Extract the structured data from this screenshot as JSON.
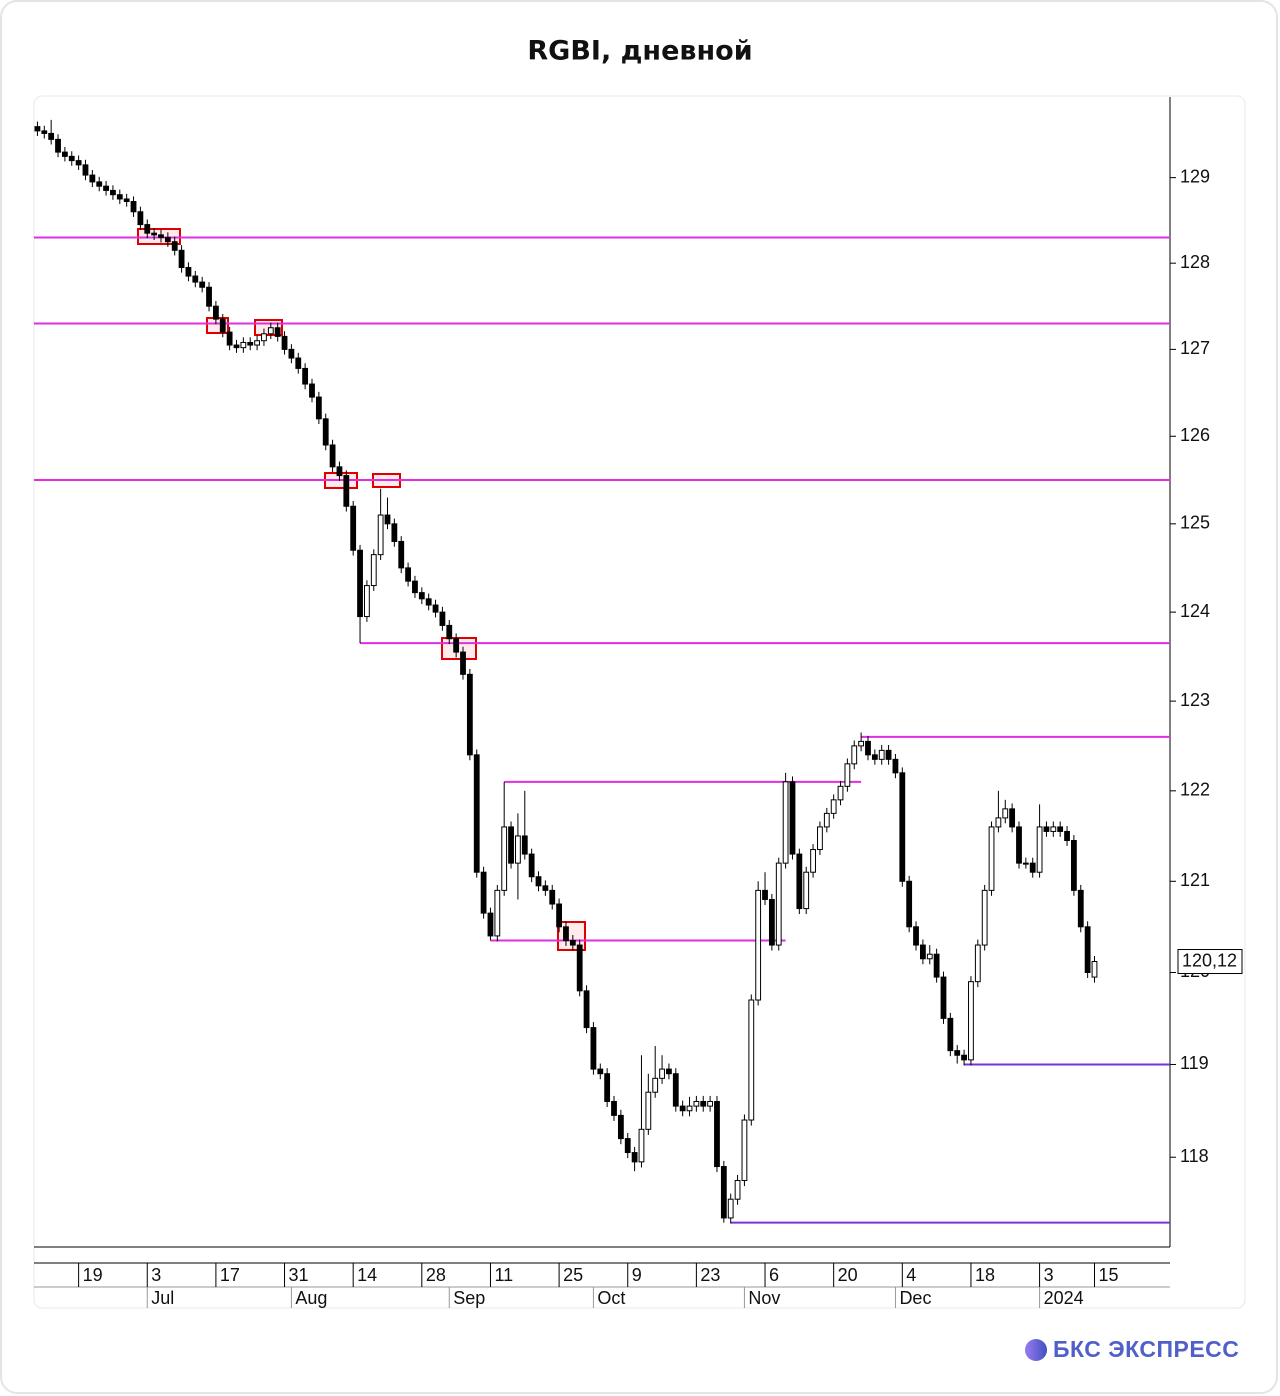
{
  "chart_data": {
    "type": "candlestick",
    "title": "RGBI, дневной",
    "log_scale": true,
    "ylim": [
      117.04,
      129.95
    ],
    "yticks": [
      118,
      119,
      120,
      121,
      122,
      123,
      124,
      125,
      126,
      127,
      128,
      129
    ],
    "xlim": [
      -0.5,
      165
    ],
    "xticks": [
      {
        "value": 6,
        "label": "19"
      },
      {
        "value": 16,
        "label": "3"
      },
      {
        "value": 26,
        "label": "17"
      },
      {
        "value": 36,
        "label": "31"
      },
      {
        "value": 46,
        "label": "14"
      },
      {
        "value": 56,
        "label": "28"
      },
      {
        "value": 66,
        "label": "11"
      },
      {
        "value": 76,
        "label": "25"
      },
      {
        "value": 86,
        "label": "9"
      },
      {
        "value": 96,
        "label": "23"
      },
      {
        "value": 106,
        "label": "6"
      },
      {
        "value": 116,
        "label": "20"
      },
      {
        "value": 126,
        "label": "4"
      },
      {
        "value": 136,
        "label": "18"
      },
      {
        "value": 146,
        "label": "3"
      },
      {
        "value": 154,
        "label": "15"
      }
    ],
    "month_ticks": [
      {
        "value": 16,
        "label": "Jul"
      },
      {
        "value": 37,
        "label": "Aug"
      },
      {
        "value": 60,
        "label": "Sep"
      },
      {
        "value": 81,
        "label": "Oct"
      },
      {
        "value": 103,
        "label": "Nov"
      },
      {
        "value": 125,
        "label": "Dec"
      },
      {
        "value": 146,
        "label": "2024"
      }
    ],
    "up_color": "#ffffff",
    "down_color": "#000000",
    "open": [
      129.6,
      129.55,
      129.52,
      129.45,
      129.3,
      129.25,
      129.2,
      129.15,
      129.03,
      128.95,
      128.9,
      128.85,
      128.8,
      128.75,
      128.72,
      128.6,
      128.45,
      128.35,
      128.33,
      128.3,
      128.25,
      128.15,
      127.95,
      127.85,
      127.78,
      127.72,
      127.5,
      127.35,
      127.2,
      127.05,
      127.02,
      127.08,
      127.05,
      127.1,
      127.18,
      127.25,
      127.15,
      127.0,
      126.9,
      126.78,
      126.6,
      126.45,
      126.2,
      125.9,
      125.65,
      125.55,
      125.2,
      124.7,
      123.95,
      124.3,
      124.65,
      125.1,
      125.0,
      124.8,
      124.5,
      124.35,
      124.22,
      124.15,
      124.08,
      124.0,
      123.85,
      123.7,
      123.55,
      123.3,
      122.4,
      121.1,
      120.65,
      120.4,
      120.9,
      121.6,
      121.2,
      121.5,
      121.3,
      121.05,
      120.95,
      120.9,
      120.75,
      120.5,
      120.35,
      120.3,
      119.8,
      119.4,
      118.95,
      118.9,
      118.6,
      118.45,
      118.2,
      118.05,
      117.95,
      118.3,
      118.7,
      118.85,
      118.95,
      118.9,
      118.55,
      118.5,
      118.55,
      118.6,
      118.55,
      118.6,
      117.9,
      117.35,
      117.55,
      117.75,
      118.4,
      119.7,
      120.9,
      120.8,
      120.3,
      121.2,
      122.1,
      121.3,
      120.7,
      121.1,
      121.35,
      121.6,
      121.75,
      121.9,
      122.05,
      122.3,
      122.5,
      122.55,
      122.4,
      122.35,
      122.45,
      122.35,
      122.2,
      121.0,
      120.5,
      120.3,
      120.15,
      120.2,
      119.95,
      119.5,
      119.15,
      119.1,
      119.05,
      119.9,
      120.3,
      120.9,
      121.6,
      121.7,
      121.8,
      121.6,
      121.2,
      121.2,
      121.1,
      121.6,
      121.55,
      121.6,
      121.55,
      121.45,
      120.9,
      120.5,
      119.95
    ],
    "high": [
      129.66,
      129.61,
      129.68,
      129.51,
      129.36,
      129.31,
      129.26,
      129.21,
      129.09,
      129.01,
      128.96,
      128.91,
      128.86,
      128.81,
      128.78,
      128.66,
      128.51,
      128.41,
      128.39,
      128.36,
      128.31,
      128.21,
      128.01,
      127.91,
      127.84,
      127.78,
      127.56,
      127.41,
      127.26,
      127.11,
      127.14,
      127.14,
      127.16,
      127.24,
      127.31,
      127.31,
      127.21,
      127.06,
      126.96,
      126.84,
      126.66,
      126.51,
      126.26,
      125.96,
      125.71,
      125.61,
      125.26,
      124.76,
      124.36,
      124.71,
      125.4,
      125.3,
      125.06,
      124.86,
      124.56,
      124.41,
      124.28,
      124.21,
      124.14,
      124.06,
      123.91,
      123.76,
      123.61,
      123.36,
      122.46,
      121.16,
      120.71,
      120.96,
      122.1,
      121.66,
      121.75,
      122.0,
      121.36,
      121.11,
      121.01,
      120.96,
      120.81,
      120.56,
      120.41,
      120.36,
      119.86,
      119.46,
      119.01,
      118.96,
      118.66,
      118.51,
      118.26,
      118.11,
      119.1,
      118.9,
      119.2,
      119.1,
      119.01,
      118.96,
      118.61,
      118.65,
      118.66,
      118.66,
      118.66,
      118.66,
      117.96,
      117.61,
      117.81,
      118.46,
      119.76,
      121.0,
      121.1,
      120.86,
      121.26,
      122.2,
      122.16,
      121.36,
      121.16,
      121.41,
      121.66,
      121.81,
      121.96,
      122.11,
      122.36,
      122.56,
      122.65,
      122.61,
      122.46,
      122.51,
      122.51,
      122.41,
      122.26,
      121.06,
      120.56,
      120.36,
      120.3,
      120.26,
      120.01,
      119.56,
      119.21,
      119.16,
      119.96,
      120.36,
      120.96,
      121.66,
      122.0,
      121.9,
      121.86,
      121.66,
      121.26,
      121.26,
      121.85,
      121.66,
      121.66,
      121.66,
      121.61,
      121.51,
      120.96,
      120.56,
      120.18
    ],
    "low": [
      129.49,
      129.46,
      129.39,
      129.24,
      129.19,
      129.14,
      129.09,
      128.97,
      128.89,
      128.84,
      128.79,
      128.74,
      128.69,
      128.66,
      128.54,
      128.39,
      128.29,
      128.27,
      128.24,
      128.19,
      128.09,
      127.89,
      127.79,
      127.72,
      127.66,
      127.44,
      127.29,
      127.14,
      126.99,
      126.96,
      126.96,
      126.99,
      126.99,
      127.04,
      127.12,
      127.09,
      126.94,
      126.84,
      126.72,
      126.54,
      126.39,
      126.14,
      125.84,
      125.59,
      125.49,
      125.14,
      124.64,
      123.65,
      123.89,
      124.24,
      124.59,
      124.94,
      124.74,
      124.44,
      124.29,
      124.16,
      124.09,
      124.02,
      123.94,
      123.79,
      123.64,
      123.49,
      123.24,
      122.34,
      121.04,
      120.59,
      120.35,
      120.34,
      120.84,
      121.14,
      120.8,
      121.24,
      120.99,
      120.89,
      120.84,
      120.69,
      120.44,
      120.29,
      120.24,
      119.74,
      119.34,
      118.89,
      118.84,
      118.54,
      118.39,
      118.14,
      117.99,
      117.85,
      117.89,
      118.24,
      118.64,
      118.79,
      118.84,
      118.49,
      118.44,
      118.44,
      118.49,
      118.49,
      118.49,
      117.84,
      117.3,
      117.29,
      117.49,
      117.69,
      118.34,
      119.64,
      120.74,
      120.24,
      120.24,
      121.14,
      121.24,
      120.64,
      120.64,
      121.04,
      121.29,
      121.54,
      121.69,
      121.84,
      121.99,
      122.24,
      122.44,
      122.34,
      122.29,
      122.29,
      122.29,
      122.14,
      120.94,
      120.44,
      120.24,
      120.09,
      120.09,
      119.89,
      119.44,
      119.09,
      119.01,
      118.99,
      118.99,
      119.84,
      120.24,
      120.84,
      121.54,
      121.64,
      121.54,
      121.14,
      121.14,
      121.04,
      121.04,
      121.49,
      121.49,
      121.49,
      121.39,
      120.84,
      120.44,
      119.94,
      119.89
    ],
    "close": [
      129.55,
      129.52,
      129.45,
      129.3,
      129.25,
      129.2,
      129.15,
      129.03,
      128.95,
      128.9,
      128.85,
      128.8,
      128.75,
      128.72,
      128.6,
      128.45,
      128.35,
      128.33,
      128.3,
      128.25,
      128.15,
      127.95,
      127.85,
      127.78,
      127.72,
      127.5,
      127.35,
      127.2,
      127.05,
      127.02,
      127.08,
      127.05,
      127.1,
      127.18,
      127.25,
      127.15,
      127.0,
      126.9,
      126.78,
      126.6,
      126.45,
      126.2,
      125.9,
      125.65,
      125.55,
      125.2,
      124.7,
      123.95,
      124.3,
      124.65,
      125.1,
      125.0,
      124.8,
      124.5,
      124.35,
      124.22,
      124.15,
      124.08,
      124.0,
      123.85,
      123.7,
      123.55,
      123.3,
      122.4,
      121.1,
      120.65,
      120.4,
      120.9,
      121.6,
      121.2,
      121.5,
      121.3,
      121.05,
      120.95,
      120.9,
      120.75,
      120.5,
      120.35,
      120.3,
      119.8,
      119.4,
      118.95,
      118.9,
      118.6,
      118.45,
      118.2,
      118.05,
      117.95,
      118.3,
      118.7,
      118.85,
      118.95,
      118.9,
      118.55,
      118.5,
      118.55,
      118.6,
      118.55,
      118.6,
      117.9,
      117.35,
      117.55,
      117.75,
      118.4,
      119.7,
      120.9,
      120.8,
      120.3,
      121.2,
      122.1,
      121.3,
      120.7,
      121.1,
      121.35,
      121.6,
      121.75,
      121.9,
      122.05,
      122.3,
      122.5,
      122.55,
      122.4,
      122.35,
      122.45,
      122.35,
      122.2,
      121.0,
      120.5,
      120.3,
      120.15,
      120.2,
      119.95,
      119.5,
      119.15,
      119.1,
      119.05,
      119.9,
      120.3,
      120.9,
      121.6,
      121.7,
      121.8,
      121.6,
      121.2,
      121.2,
      121.1,
      121.6,
      121.55,
      121.6,
      121.55,
      121.45,
      120.9,
      120.5,
      120.0,
      120.12
    ],
    "last_price_label": "120,12",
    "levels": [
      {
        "value": 128.3,
        "from": -0.5,
        "to": 165,
        "color": "#e02ee0"
      },
      {
        "value": 127.3,
        "from": -0.5,
        "to": 165,
        "color": "#e02ee0"
      },
      {
        "value": 125.5,
        "from": -0.5,
        "to": 165,
        "color": "#e02ee0"
      },
      {
        "value": 123.65,
        "from": 47,
        "to": 165,
        "color": "#e02ee0"
      },
      {
        "value": 122.6,
        "from": 120,
        "to": 165,
        "color": "#e02ee0"
      },
      {
        "value": 122.1,
        "from": 68,
        "to": 120,
        "color": "#e02ee0"
      },
      {
        "value": 120.35,
        "from": 66,
        "to": 109,
        "color": "#e02ee0"
      },
      {
        "value": 119.0,
        "from": 135,
        "to": 165,
        "color": "#7a30d8"
      },
      {
        "value": 117.3,
        "from": 101,
        "to": 165,
        "color": "#7a30d8"
      }
    ],
    "brand": "БКС ЭКСПРЕСС"
  }
}
